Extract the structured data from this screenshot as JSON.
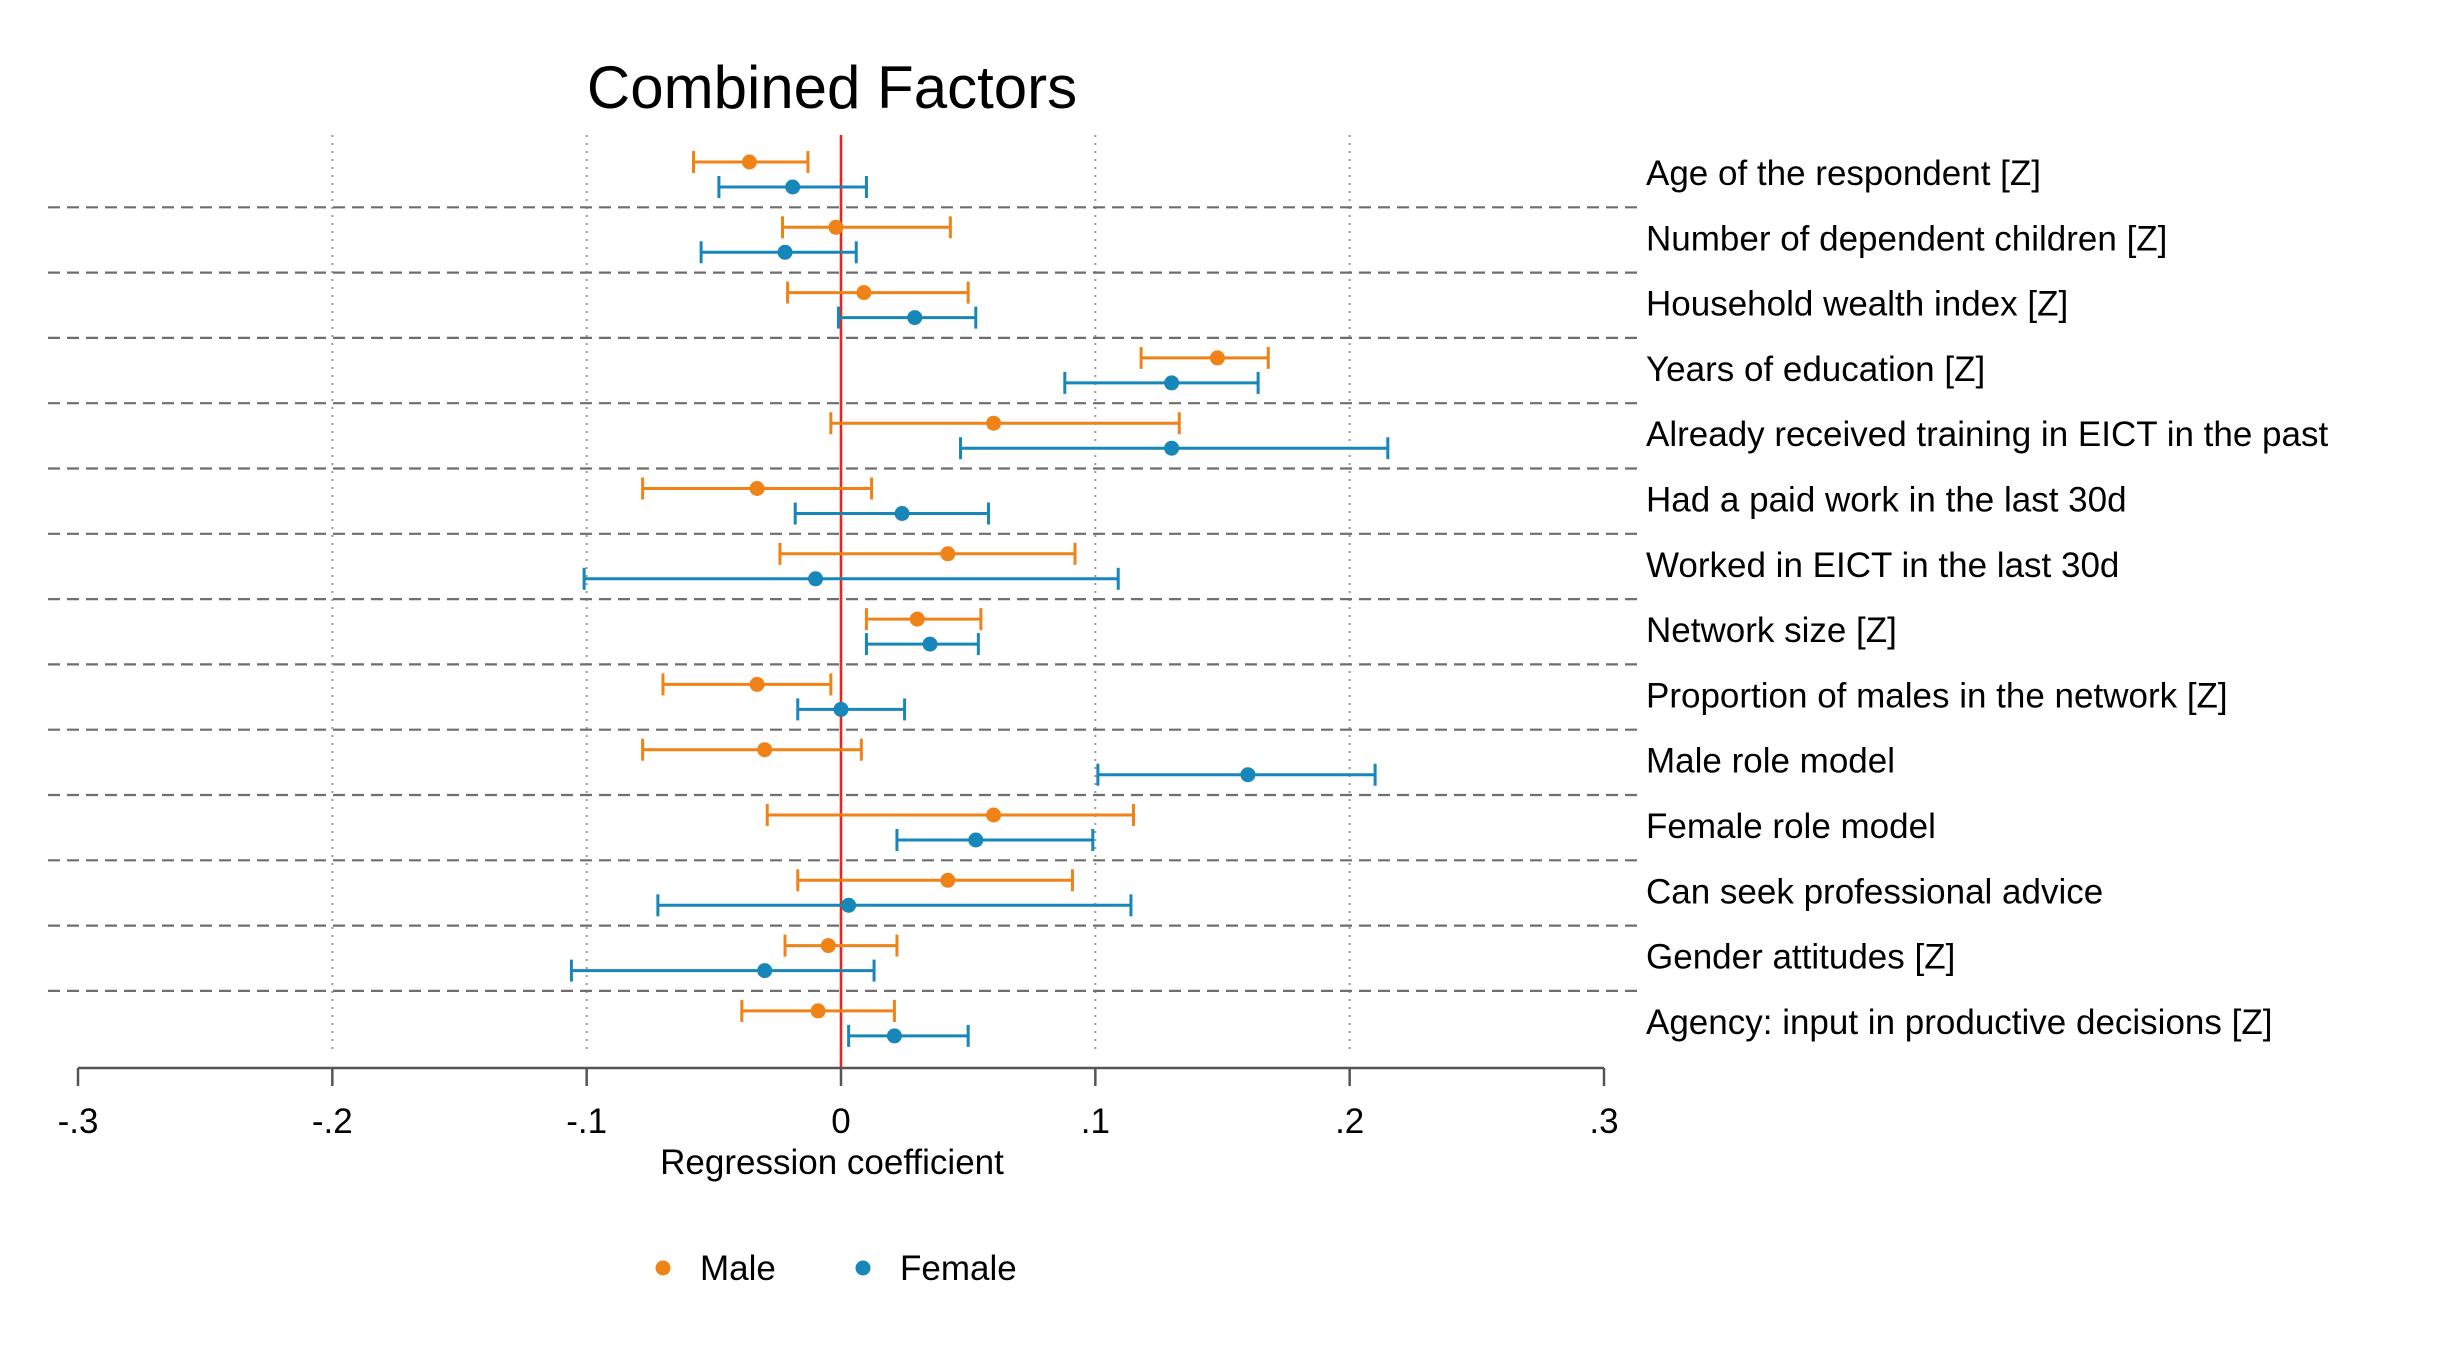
{
  "chart_data": {
    "type": "scatter",
    "subtype": "coefficient-plot-horizontal",
    "title": "Combined Factors",
    "xlabel": "Regression coefficient",
    "xlim": [
      -0.3,
      0.3
    ],
    "xticks": [
      -0.3,
      -0.2,
      -0.1,
      0,
      0.1,
      0.2,
      0.3
    ],
    "xtick_labels": [
      "-.3",
      "-.2",
      "-.1",
      "0",
      ".1",
      ".2",
      ".3"
    ],
    "grid": "vertical dotted at ticks",
    "reference_line": {
      "x": 0,
      "color": "#e8251e"
    },
    "legend": {
      "position": "bottom"
    },
    "categories": [
      "Age of the respondent [Z]",
      "Number of dependent children [Z]",
      "Household wealth index [Z]",
      "Years of education [Z]",
      "Already received training in EICT in the past",
      "Had a paid work in the last 30d",
      "Worked in EICT in the last 30d",
      "Network size [Z]",
      "Proportion of males in the network [Z]",
      "Male role model",
      "Female role model",
      "Can seek professional advice",
      "Gender attitudes [Z]",
      "Agency: input in productive decisions [Z]"
    ],
    "series": [
      {
        "name": "Male",
        "color": "#f08318",
        "estimates": [
          -0.036,
          -0.002,
          0.009,
          0.148,
          0.06,
          -0.033,
          0.042,
          0.03,
          -0.033,
          -0.03,
          0.06,
          0.042,
          -0.005,
          -0.009
        ],
        "ci_low": [
          -0.058,
          -0.023,
          -0.021,
          0.118,
          -0.004,
          -0.078,
          -0.024,
          0.01,
          -0.07,
          -0.078,
          -0.029,
          -0.017,
          -0.022,
          -0.039
        ],
        "ci_high": [
          -0.013,
          0.043,
          0.05,
          0.168,
          0.133,
          0.012,
          0.092,
          0.055,
          -0.004,
          0.008,
          0.115,
          0.091,
          0.022,
          0.021
        ]
      },
      {
        "name": "Female",
        "color": "#1786b8",
        "estimates": [
          -0.019,
          -0.022,
          0.029,
          0.13,
          0.13,
          0.024,
          -0.01,
          0.035,
          0.0,
          0.16,
          0.053,
          0.003,
          -0.03,
          0.021
        ],
        "ci_low": [
          -0.048,
          -0.055,
          -0.001,
          0.088,
          0.047,
          -0.018,
          -0.101,
          0.01,
          -0.017,
          0.101,
          0.022,
          -0.072,
          -0.106,
          0.003
        ],
        "ci_high": [
          0.01,
          0.006,
          0.053,
          0.164,
          0.215,
          0.058,
          0.109,
          0.054,
          0.025,
          0.21,
          0.099,
          0.114,
          0.013,
          0.05
        ]
      }
    ]
  }
}
